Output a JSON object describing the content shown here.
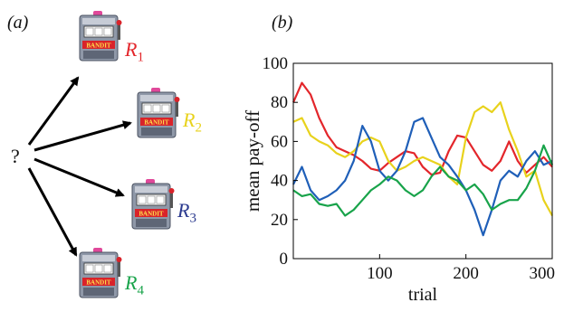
{
  "panel_a": {
    "label": "(a)",
    "question": "?",
    "machine_sign": "BANDIT",
    "arms": [
      {
        "symbol": "R",
        "sub": "1",
        "color": "#e3262b"
      },
      {
        "symbol": "R",
        "sub": "2",
        "color": "#e8d21c"
      },
      {
        "symbol": "R",
        "sub": "3",
        "color": "#2b3a8f"
      },
      {
        "symbol": "R",
        "sub": "4",
        "color": "#18a34a"
      }
    ]
  },
  "panel_b": {
    "label": "(b)"
  },
  "chart_data": {
    "type": "line",
    "xlabel": "trial",
    "ylabel": "mean pay-off",
    "xlim": [
      0,
      300
    ],
    "ylim": [
      0,
      100
    ],
    "xticks": [
      "100",
      "200",
      "300"
    ],
    "yticks": [
      "0",
      "20",
      "40",
      "60",
      "80",
      "100"
    ],
    "grid": false,
    "legend": "none",
    "series": [
      {
        "color": "#e3262b",
        "x": [
          0,
          10,
          20,
          30,
          40,
          50,
          60,
          70,
          80,
          90,
          100,
          110,
          120,
          130,
          140,
          150,
          160,
          170,
          180,
          190,
          200,
          210,
          220,
          230,
          240,
          250,
          260,
          270,
          280,
          290,
          300
        ],
        "y": [
          80,
          90,
          84,
          72,
          63,
          57,
          55,
          53,
          50,
          46,
          45,
          49,
          52,
          55,
          54,
          47,
          43,
          44,
          55,
          63,
          62,
          55,
          48,
          45,
          50,
          60,
          50,
          44,
          48,
          52,
          47
        ]
      },
      {
        "color": "#e8d21c",
        "x": [
          0,
          10,
          20,
          30,
          40,
          50,
          60,
          70,
          80,
          90,
          100,
          110,
          120,
          130,
          140,
          150,
          160,
          170,
          180,
          190,
          200,
          210,
          220,
          230,
          240,
          250,
          260,
          270,
          280,
          290,
          300
        ],
        "y": [
          70,
          72,
          63,
          60,
          58,
          54,
          52,
          55,
          60,
          62,
          60,
          50,
          45,
          47,
          50,
          52,
          50,
          48,
          42,
          38,
          62,
          75,
          78,
          75,
          80,
          66,
          55,
          42,
          45,
          30,
          22
        ]
      },
      {
        "color": "#1f5fb8",
        "x": [
          0,
          10,
          20,
          30,
          40,
          50,
          60,
          70,
          80,
          90,
          100,
          110,
          120,
          130,
          140,
          150,
          160,
          170,
          180,
          190,
          200,
          210,
          220,
          230,
          240,
          250,
          260,
          270,
          280,
          290,
          300
        ],
        "y": [
          38,
          47,
          35,
          30,
          32,
          35,
          40,
          50,
          68,
          60,
          45,
          40,
          45,
          55,
          70,
          72,
          62,
          52,
          48,
          42,
          35,
          25,
          12,
          25,
          40,
          45,
          42,
          50,
          55,
          48,
          50
        ]
      },
      {
        "color": "#18a34a",
        "x": [
          0,
          10,
          20,
          30,
          40,
          50,
          60,
          70,
          80,
          90,
          100,
          110,
          120,
          130,
          140,
          150,
          160,
          170,
          180,
          190,
          200,
          210,
          220,
          230,
          240,
          250,
          260,
          270,
          280,
          290,
          300
        ],
        "y": [
          35,
          32,
          33,
          28,
          27,
          28,
          22,
          25,
          30,
          35,
          38,
          42,
          40,
          35,
          32,
          35,
          42,
          47,
          42,
          40,
          35,
          38,
          33,
          25,
          28,
          30,
          30,
          36,
          45,
          58,
          48
        ]
      }
    ]
  }
}
